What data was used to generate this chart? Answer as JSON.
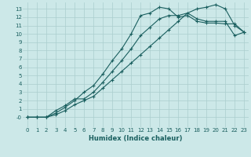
{
  "xlabel": "Humidex (Indice chaleur)",
  "bg_color": "#cce8e8",
  "grid_color": "#aacece",
  "line_color": "#1a5f5f",
  "xlim": [
    -0.5,
    23.5
  ],
  "ylim": [
    -1.2,
    13.8
  ],
  "xticks": [
    0,
    1,
    2,
    3,
    4,
    5,
    6,
    7,
    8,
    9,
    10,
    11,
    12,
    13,
    14,
    15,
    16,
    17,
    18,
    19,
    20,
    21,
    22,
    23
  ],
  "yticks": [
    0,
    1,
    2,
    3,
    4,
    5,
    6,
    7,
    8,
    9,
    10,
    11,
    12,
    13
  ],
  "ytick_labels": [
    "-0",
    "1",
    "2",
    "3",
    "4",
    "5",
    "6",
    "7",
    "8",
    "9",
    "10",
    "11",
    "12",
    "13"
  ],
  "curve1_x": [
    0,
    1,
    2,
    3,
    4,
    5,
    6,
    7,
    8,
    9,
    10,
    11,
    12,
    13,
    14,
    15,
    16,
    17,
    18,
    19,
    20,
    21,
    22,
    23
  ],
  "curve1_y": [
    0,
    0,
    0,
    0.5,
    1.2,
    2.0,
    3.0,
    3.8,
    5.2,
    6.8,
    8.2,
    10.0,
    12.2,
    12.5,
    13.2,
    13.0,
    12.0,
    12.2,
    11.5,
    11.3,
    11.3,
    11.2,
    11.2,
    10.2
  ],
  "curve2_x": [
    0,
    1,
    2,
    3,
    4,
    5,
    6,
    7,
    8,
    9,
    10,
    11,
    12,
    13,
    14,
    15,
    16,
    17,
    18,
    19,
    20,
    21,
    22,
    23
  ],
  "curve2_y": [
    0,
    0,
    0,
    0.8,
    1.4,
    2.2,
    2.2,
    3.0,
    4.2,
    5.5,
    6.8,
    8.2,
    9.8,
    10.8,
    11.8,
    12.2,
    12.2,
    12.5,
    11.8,
    11.5,
    11.5,
    11.5,
    9.8,
    10.2
  ],
  "curve3_x": [
    0,
    1,
    2,
    3,
    4,
    5,
    6,
    7,
    8,
    9,
    10,
    11,
    12,
    13,
    14,
    15,
    16,
    17,
    18,
    19,
    20,
    21,
    22,
    23
  ],
  "curve3_y": [
    0,
    0,
    0,
    0.3,
    0.8,
    1.5,
    2.0,
    2.5,
    3.5,
    4.5,
    5.5,
    6.5,
    7.5,
    8.5,
    9.5,
    10.5,
    11.5,
    12.5,
    13.0,
    13.2,
    13.5,
    13.0,
    11.0,
    10.2
  ],
  "xlabel_fontsize": 6,
  "tick_fontsize": 5,
  "line_width": 0.8,
  "marker_size": 3
}
